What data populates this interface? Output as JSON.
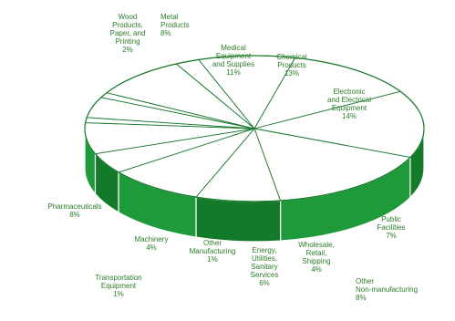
{
  "chart_data": {
    "type": "pie",
    "title": "",
    "style": "3d-exploded-disc",
    "colors": {
      "top": "#ffffff",
      "side": "#1e9a3a",
      "side_dark": "#137a2a",
      "edge": "#1a7a30",
      "text": "#2a7d2a"
    },
    "slices": [
      {
        "label": "Wood Products, Paper, and Printing",
        "display": "Wood\nProducts,\nPaper, and\nPrinting\n2%",
        "value": 2
      },
      {
        "label": "Metal Products",
        "display": "Metal\nProducts\n8%",
        "value": 8
      },
      {
        "label": "Medical Equipment and Supplies",
        "display": "Medical\nEquipment\nand Supplies\n11%",
        "value": 11
      },
      {
        "label": "Chemical Products",
        "display": "Chemical\nProducts\n13%",
        "value": 13
      },
      {
        "label": "Electronic and Electrical Equipment",
        "display": "Electronic\nand Electrical\nEquipment\n14%",
        "value": 14
      },
      {
        "label": "Public Facilities",
        "display": "Public\nFacilities\n7%",
        "value": 7
      },
      {
        "label": "Other Non-manufacturing",
        "display": "Other\nNon-manufacturing\n8%",
        "value": 8
      },
      {
        "label": "Wholesale, Retail, Shipping",
        "display": "Wholesale,\nRetail,\nShipping\n4%",
        "value": 4
      },
      {
        "label": "Energy, Utilities, Sanitary Services",
        "display": "Energy,\nUtilities,\nSanitary\nServices\n6%",
        "value": 6
      },
      {
        "label": "Other Manufacturing",
        "display": "Other\nManufacturing\n1%",
        "value": 1
      },
      {
        "label": "Machinery",
        "display": "Machinery\n4%",
        "value": 4
      },
      {
        "label": "Transportation Equipment",
        "display": "Transportation\nEquipment\n1%",
        "value": 1
      },
      {
        "label": "Pharmaceuticals",
        "display": "Pharmaceuticals\n8%",
        "value": 8
      }
    ]
  }
}
